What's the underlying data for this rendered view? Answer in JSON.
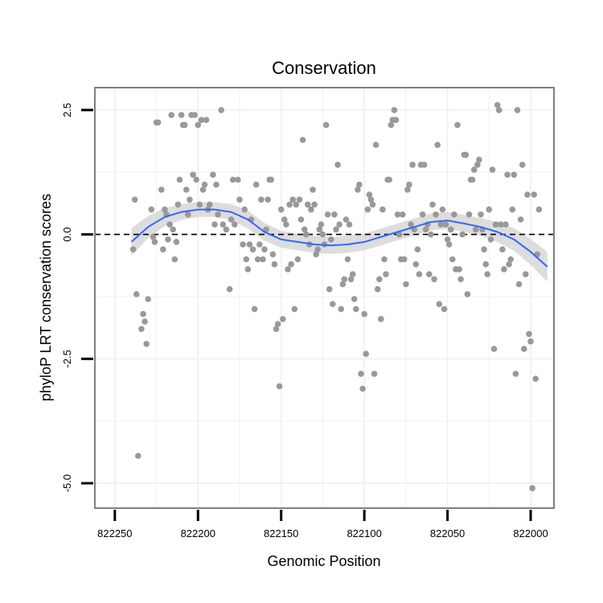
{
  "chart_data": {
    "type": "scatter",
    "title": "Conservation",
    "xlabel": "Genomic Position",
    "ylabel": "phyloP LRT conservation scores",
    "x_reversed": true,
    "xlim": [
      822262,
      821986
    ],
    "ylim": [
      -5.5,
      2.95
    ],
    "x_ticks": [
      822250,
      822200,
      822150,
      822100,
      822050,
      822000
    ],
    "y_ticks": [
      -5.0,
      -2.5,
      0.0,
      2.5
    ],
    "y_tick_labels": [
      "-5.0",
      "-2.5",
      "0.0",
      "2.5"
    ],
    "reference_line": {
      "y": 0,
      "style": "dashed"
    },
    "points_color": "#999999",
    "smooth_color": "#3366FF",
    "band_color": "#D9D9D9",
    "grid": true,
    "points": [
      [
        822238,
        0.7
      ],
      [
        822239,
        -0.3
      ],
      [
        822237,
        -1.2
      ],
      [
        822236,
        -4.45
      ],
      [
        822234,
        -1.9
      ],
      [
        822233,
        -1.6
      ],
      [
        822232,
        -1.75
      ],
      [
        822231,
        -2.2
      ],
      [
        822230,
        -1.3
      ],
      [
        822228,
        0.5
      ],
      [
        822227,
        -0.05
      ],
      [
        822226,
        -0.15
      ],
      [
        822225,
        2.25
      ],
      [
        822224,
        2.25
      ],
      [
        822222,
        0.9
      ],
      [
        822221,
        -0.3
      ],
      [
        822220,
        0.5
      ],
      [
        822219,
        0.4
      ],
      [
        822218,
        -0.1
      ],
      [
        822217,
        0.2
      ],
      [
        822216,
        2.4
      ],
      [
        822215,
        0.1
      ],
      [
        822214,
        -0.5
      ],
      [
        822213,
        -0.15
      ],
      [
        822212,
        0.6
      ],
      [
        822211,
        1.1
      ],
      [
        822210,
        2.4
      ],
      [
        822209,
        2.2
      ],
      [
        822208,
        2.2
      ],
      [
        822207,
        0.9
      ],
      [
        822206,
        0.4
      ],
      [
        822205,
        0.7
      ],
      [
        822204,
        2.4
      ],
      [
        822203,
        1.2
      ],
      [
        822202,
        2.4
      ],
      [
        822201,
        1.1
      ],
      [
        822200,
        2.2
      ],
      [
        822199,
        0.6
      ],
      [
        822198,
        2.3
      ],
      [
        822197,
        0.9
      ],
      [
        822196,
        1.0
      ],
      [
        822195,
        2.3
      ],
      [
        822194,
        0.5
      ],
      [
        822193,
        0.6
      ],
      [
        822191,
        1.2
      ],
      [
        822190,
        0.2
      ],
      [
        822189,
        1.0
      ],
      [
        822188,
        0.4
      ],
      [
        822186,
        2.5
      ],
      [
        822185,
        0.2
      ],
      [
        822183,
        0.1
      ],
      [
        822181,
        -1.1
      ],
      [
        822180,
        0.3
      ],
      [
        822179,
        1.1
      ],
      [
        822178,
        0.2
      ],
      [
        822176,
        1.1
      ],
      [
        822175,
        0.7
      ],
      [
        822173,
        -0.2
      ],
      [
        822172,
        0.5
      ],
      [
        822171,
        -0.5
      ],
      [
        822170,
        -0.7
      ],
      [
        822169,
        -0.2
      ],
      [
        822168,
        0.3
      ],
      [
        822167,
        -0.3
      ],
      [
        822166,
        -1.5
      ],
      [
        822165,
        1.0
      ],
      [
        822164,
        -0.5
      ],
      [
        822163,
        -0.2
      ],
      [
        822162,
        0.7
      ],
      [
        822161,
        -0.5
      ],
      [
        822160,
        -0.3
      ],
      [
        822159,
        0.1
      ],
      [
        822158,
        0.7
      ],
      [
        822157,
        1.1
      ],
      [
        822156,
        1.1
      ],
      [
        822155,
        -0.4
      ],
      [
        822154,
        -0.6
      ],
      [
        822153,
        -1.9
      ],
      [
        822152,
        -1.8
      ],
      [
        822151,
        -3.05
      ],
      [
        822150,
        0.5
      ],
      [
        822149,
        -1.7
      ],
      [
        822148,
        0.3
      ],
      [
        822147,
        0.2
      ],
      [
        822146,
        -0.7
      ],
      [
        822145,
        0.6
      ],
      [
        822144,
        -0.6
      ],
      [
        822143,
        0.7
      ],
      [
        822142,
        -1.5
      ],
      [
        822141,
        0.6
      ],
      [
        822140,
        -0.5
      ],
      [
        822139,
        0.7
      ],
      [
        822138,
        0.3
      ],
      [
        822137,
        1.9
      ],
      [
        822136,
        0.1
      ],
      [
        822135,
        0.0
      ],
      [
        822134,
        0.6
      ],
      [
        822133,
        -0.2
      ],
      [
        822132,
        0.5
      ],
      [
        822131,
        0.9
      ],
      [
        822130,
        0.6
      ],
      [
        822129,
        -0.4
      ],
      [
        822128,
        -0.3
      ],
      [
        822127,
        0.1
      ],
      [
        822126,
        0.2
      ],
      [
        822125,
        0.0
      ],
      [
        822124,
        -0.2
      ],
      [
        822123,
        2.2
      ],
      [
        822122,
        0.4
      ],
      [
        822121,
        -1.1
      ],
      [
        822120,
        -0.1
      ],
      [
        822119,
        -1.4
      ],
      [
        822118,
        0.4
      ],
      [
        822117,
        0.1
      ],
      [
        822116,
        1.4
      ],
      [
        822115,
        0.2
      ],
      [
        822114,
        -1.5
      ],
      [
        822113,
        -1.0
      ],
      [
        822112,
        -0.9
      ],
      [
        822111,
        0.3
      ],
      [
        822110,
        -0.5
      ],
      [
        822109,
        0.2
      ],
      [
        822108,
        -0.9
      ],
      [
        822107,
        -0.8
      ],
      [
        822106,
        -1.3
      ],
      [
        822105,
        -1.5
      ],
      [
        822104,
        0.9
      ],
      [
        822103,
        1.0
      ],
      [
        822102,
        -2.8
      ],
      [
        822101,
        -3.1
      ],
      [
        822100,
        -1.6
      ],
      [
        822099,
        -2.4
      ],
      [
        822098,
        0.5
      ],
      [
        822097,
        0.8
      ],
      [
        822096,
        0.7
      ],
      [
        822095,
        0.6
      ],
      [
        822094,
        -2.8
      ],
      [
        822093,
        1.8
      ],
      [
        822092,
        -1.1
      ],
      [
        822091,
        -0.9
      ],
      [
        822090,
        -1.7
      ],
      [
        822089,
        0.5
      ],
      [
        822088,
        -0.5
      ],
      [
        822087,
        -0.8
      ],
      [
        822086,
        1.1
      ],
      [
        822085,
        1.1
      ],
      [
        822084,
        2.2
      ],
      [
        822083,
        2.3
      ],
      [
        822082,
        2.5
      ],
      [
        822081,
        2.3
      ],
      [
        822080,
        0.4
      ],
      [
        822079,
        0.0
      ],
      [
        822078,
        -0.5
      ],
      [
        822077,
        0.4
      ],
      [
        822076,
        -0.5
      ],
      [
        822075,
        -1.0
      ],
      [
        822074,
        0.9
      ],
      [
        822073,
        1.0
      ],
      [
        822072,
        0.2
      ],
      [
        822071,
        1.4
      ],
      [
        822070,
        0.1
      ],
      [
        822069,
        -0.6
      ],
      [
        822068,
        -0.3
      ],
      [
        822067,
        -0.8
      ],
      [
        822066,
        1.4
      ],
      [
        822065,
        0.4
      ],
      [
        822064,
        1.4
      ],
      [
        822063,
        0.1
      ],
      [
        822062,
        0.2
      ],
      [
        822061,
        -0.8
      ],
      [
        822060,
        0.0
      ],
      [
        822059,
        0.6
      ],
      [
        822058,
        -0.9
      ],
      [
        822057,
        0.4
      ],
      [
        822056,
        1.8
      ],
      [
        822055,
        -1.4
      ],
      [
        822054,
        0.2
      ],
      [
        822053,
        0.5
      ],
      [
        822052,
        -1.5
      ],
      [
        822051,
        0.2
      ],
      [
        822050,
        -0.1
      ],
      [
        822049,
        -0.2
      ],
      [
        822048,
        0.1
      ],
      [
        822047,
        -0.5
      ],
      [
        822046,
        0.4
      ],
      [
        822045,
        -0.7
      ],
      [
        822044,
        2.2
      ],
      [
        822043,
        -0.7
      ],
      [
        822042,
        -0.9
      ],
      [
        822041,
        0.0
      ],
      [
        822040,
        1.6
      ],
      [
        822039,
        1.6
      ],
      [
        822038,
        -1.2
      ],
      [
        822037,
        0.4
      ],
      [
        822036,
        1.1
      ],
      [
        822035,
        1.1
      ],
      [
        822034,
        1.3
      ],
      [
        822033,
        0.1
      ],
      [
        822032,
        1.4
      ],
      [
        822031,
        1.5
      ],
      [
        822030,
        0.4
      ],
      [
        822029,
        0.1
      ],
      [
        822028,
        -0.3
      ],
      [
        822027,
        -0.6
      ],
      [
        822026,
        -0.8
      ],
      [
        822025,
        0.5
      ],
      [
        822024,
        -0.1
      ],
      [
        822023,
        1.3
      ],
      [
        822022,
        -2.3
      ],
      [
        822021,
        0.2
      ],
      [
        822020,
        2.6
      ],
      [
        822019,
        2.5
      ],
      [
        822018,
        0.2
      ],
      [
        822017,
        -0.3
      ],
      [
        822016,
        -0.7
      ],
      [
        822015,
        0.2
      ],
      [
        822014,
        1.2
      ],
      [
        822013,
        -0.6
      ],
      [
        822012,
        -0.5
      ],
      [
        822011,
        0.5
      ],
      [
        822010,
        1.2
      ],
      [
        822009,
        -2.8
      ],
      [
        822008,
        2.5
      ],
      [
        822007,
        -1.0
      ],
      [
        822006,
        0.3
      ],
      [
        822005,
        1.4
      ],
      [
        822004,
        -2.3
      ],
      [
        822003,
        -0.8
      ],
      [
        822002,
        0.8
      ],
      [
        822001,
        -2.0
      ],
      [
        822000,
        -2.15
      ],
      [
        821999,
        -5.1
      ],
      [
        821998,
        0.8
      ],
      [
        821997,
        -2.9
      ],
      [
        821996,
        -0.4
      ],
      [
        821995,
        0.5
      ]
    ],
    "smooth": [
      [
        822240,
        -0.15
      ],
      [
        822230,
        0.15
      ],
      [
        822220,
        0.35
      ],
      [
        822210,
        0.45
      ],
      [
        822200,
        0.5
      ],
      [
        822190,
        0.5
      ],
      [
        822180,
        0.45
      ],
      [
        822170,
        0.3
      ],
      [
        822160,
        0.05
      ],
      [
        822150,
        -0.1
      ],
      [
        822140,
        -0.15
      ],
      [
        822130,
        -0.2
      ],
      [
        822120,
        -0.22
      ],
      [
        822110,
        -0.2
      ],
      [
        822100,
        -0.15
      ],
      [
        822090,
        -0.05
      ],
      [
        822080,
        0.05
      ],
      [
        822070,
        0.15
      ],
      [
        822060,
        0.25
      ],
      [
        822050,
        0.28
      ],
      [
        822040,
        0.22
      ],
      [
        822030,
        0.15
      ],
      [
        822020,
        0.05
      ],
      [
        822010,
        -0.1
      ],
      [
        822000,
        -0.35
      ],
      [
        821990,
        -0.65
      ]
    ],
    "band_halfwidth": [
      0.28,
      0.22,
      0.18,
      0.16,
      0.15,
      0.15,
      0.16,
      0.18,
      0.18,
      0.17,
      0.17,
      0.17,
      0.17,
      0.17,
      0.17,
      0.17,
      0.17,
      0.17,
      0.17,
      0.17,
      0.17,
      0.18,
      0.2,
      0.23,
      0.26,
      0.3
    ]
  }
}
